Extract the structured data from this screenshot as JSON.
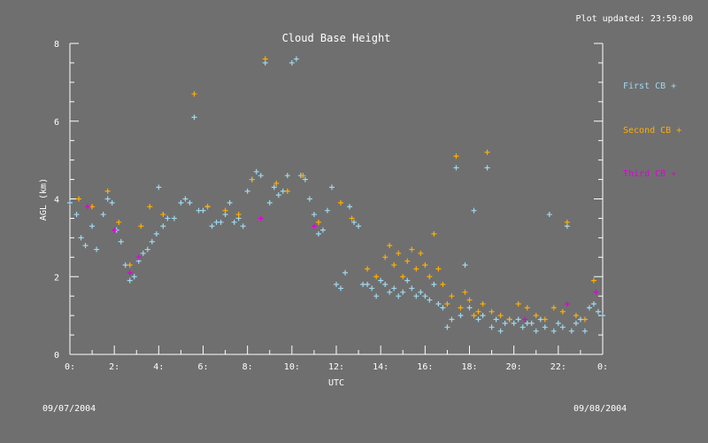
{
  "header": {
    "updated_text": "Plot updated: 23:59:00"
  },
  "dates": {
    "start": "09/07/2004",
    "end": "09/08/2004"
  },
  "colors": {
    "background": "#6f6f6f",
    "axes": "#ffffff",
    "first": "#9fd8ee",
    "second": "#ffae00",
    "third": "#e000e0"
  },
  "chart_data": {
    "type": "scatter",
    "title": "Cloud Base Height",
    "xlabel": "UTC",
    "ylabel": "AGL (km)",
    "xlim": [
      0,
      24
    ],
    "ylim": [
      0,
      8
    ],
    "x_ticks": [
      0,
      2,
      4,
      6,
      8,
      10,
      12,
      14,
      16,
      18,
      20,
      22,
      24
    ],
    "x_tick_labels": [
      "0:",
      "2:",
      "4:",
      "6:",
      "8:",
      "10:",
      "12:",
      "14:",
      "16:",
      "18:",
      "20:",
      "22:",
      "0:"
    ],
    "y_ticks": [
      0,
      2,
      4,
      6,
      8
    ],
    "y_tick_labels": [
      "0",
      "2",
      "4",
      "6",
      "8"
    ],
    "legend_position": "right",
    "series": [
      {
        "name": "First CB",
        "legend_label": "First CB +",
        "color": "#9fd8ee",
        "points": [
          [
            0.0,
            3.9
          ],
          [
            0.3,
            3.6
          ],
          [
            0.5,
            3.0
          ],
          [
            0.7,
            2.8
          ],
          [
            1.0,
            3.3
          ],
          [
            1.2,
            2.7
          ],
          [
            1.5,
            3.6
          ],
          [
            1.7,
            4.0
          ],
          [
            1.9,
            3.9
          ],
          [
            2.1,
            3.2
          ],
          [
            2.3,
            2.9
          ],
          [
            2.5,
            2.3
          ],
          [
            2.7,
            1.9
          ],
          [
            2.9,
            2.0
          ],
          [
            3.1,
            2.4
          ],
          [
            3.3,
            2.6
          ],
          [
            3.5,
            2.7
          ],
          [
            3.7,
            2.9
          ],
          [
            3.9,
            3.1
          ],
          [
            4.0,
            4.3
          ],
          [
            4.2,
            3.3
          ],
          [
            4.4,
            3.5
          ],
          [
            4.7,
            3.5
          ],
          [
            5.0,
            3.9
          ],
          [
            5.2,
            4.0
          ],
          [
            5.4,
            3.9
          ],
          [
            5.6,
            6.1
          ],
          [
            5.8,
            3.7
          ],
          [
            6.0,
            3.7
          ],
          [
            6.2,
            3.8
          ],
          [
            6.4,
            3.3
          ],
          [
            6.6,
            3.4
          ],
          [
            6.8,
            3.4
          ],
          [
            7.0,
            3.6
          ],
          [
            7.2,
            3.9
          ],
          [
            7.4,
            3.4
          ],
          [
            7.6,
            3.5
          ],
          [
            7.8,
            3.3
          ],
          [
            8.0,
            4.2
          ],
          [
            8.2,
            4.5
          ],
          [
            8.4,
            4.7
          ],
          [
            8.6,
            4.6
          ],
          [
            8.8,
            7.5
          ],
          [
            9.0,
            3.9
          ],
          [
            9.2,
            4.3
          ],
          [
            9.4,
            4.1
          ],
          [
            9.6,
            4.2
          ],
          [
            9.8,
            4.6
          ],
          [
            10.0,
            7.5
          ],
          [
            10.2,
            7.6
          ],
          [
            10.4,
            4.6
          ],
          [
            10.6,
            4.5
          ],
          [
            10.8,
            4.0
          ],
          [
            11.0,
            3.6
          ],
          [
            11.2,
            3.1
          ],
          [
            11.4,
            3.2
          ],
          [
            11.6,
            3.7
          ],
          [
            11.8,
            4.3
          ],
          [
            12.0,
            1.8
          ],
          [
            12.2,
            1.7
          ],
          [
            12.4,
            2.1
          ],
          [
            12.6,
            3.8
          ],
          [
            12.8,
            3.4
          ],
          [
            13.0,
            3.3
          ],
          [
            13.2,
            1.8
          ],
          [
            13.4,
            1.8
          ],
          [
            13.6,
            1.7
          ],
          [
            13.8,
            1.5
          ],
          [
            14.0,
            1.9
          ],
          [
            14.2,
            1.8
          ],
          [
            14.4,
            1.6
          ],
          [
            14.6,
            1.7
          ],
          [
            14.8,
            1.5
          ],
          [
            15.0,
            1.6
          ],
          [
            15.2,
            1.9
          ],
          [
            15.4,
            1.7
          ],
          [
            15.6,
            1.5
          ],
          [
            15.8,
            1.6
          ],
          [
            16.0,
            1.5
          ],
          [
            16.2,
            1.4
          ],
          [
            16.4,
            1.8
          ],
          [
            16.6,
            1.3
          ],
          [
            16.8,
            1.2
          ],
          [
            17.0,
            0.7
          ],
          [
            17.2,
            0.9
          ],
          [
            17.4,
            4.8
          ],
          [
            17.6,
            1.0
          ],
          [
            17.8,
            2.3
          ],
          [
            18.0,
            1.2
          ],
          [
            18.2,
            3.7
          ],
          [
            18.4,
            0.9
          ],
          [
            18.6,
            1.0
          ],
          [
            18.8,
            4.8
          ],
          [
            19.0,
            0.7
          ],
          [
            19.2,
            0.9
          ],
          [
            19.4,
            0.6
          ],
          [
            19.6,
            0.8
          ],
          [
            19.8,
            0.9
          ],
          [
            20.0,
            0.8
          ],
          [
            20.2,
            0.9
          ],
          [
            20.4,
            0.7
          ],
          [
            20.6,
            0.8
          ],
          [
            20.8,
            0.8
          ],
          [
            21.0,
            0.6
          ],
          [
            21.2,
            0.9
          ],
          [
            21.4,
            0.7
          ],
          [
            21.6,
            3.6
          ],
          [
            21.8,
            0.6
          ],
          [
            22.0,
            0.8
          ],
          [
            22.2,
            0.7
          ],
          [
            22.4,
            3.3
          ],
          [
            22.6,
            0.6
          ],
          [
            22.8,
            0.8
          ],
          [
            23.0,
            0.9
          ],
          [
            23.2,
            0.6
          ],
          [
            23.4,
            1.2
          ],
          [
            23.6,
            1.3
          ],
          [
            23.8,
            1.1
          ],
          [
            24.0,
            1.0
          ]
        ]
      },
      {
        "name": "Second CB",
        "legend_label": "Second CB +",
        "color": "#ffae00",
        "points": [
          [
            0.4,
            4.0
          ],
          [
            1.0,
            3.8
          ],
          [
            1.7,
            4.2
          ],
          [
            2.2,
            3.4
          ],
          [
            2.7,
            2.3
          ],
          [
            3.2,
            3.3
          ],
          [
            3.6,
            3.8
          ],
          [
            4.2,
            3.6
          ],
          [
            5.6,
            6.7
          ],
          [
            6.2,
            3.8
          ],
          [
            7.0,
            3.7
          ],
          [
            7.6,
            3.6
          ],
          [
            8.2,
            4.5
          ],
          [
            8.8,
            7.6
          ],
          [
            9.3,
            4.4
          ],
          [
            9.8,
            4.2
          ],
          [
            10.5,
            4.6
          ],
          [
            11.2,
            3.4
          ],
          [
            12.2,
            3.9
          ],
          [
            12.7,
            3.5
          ],
          [
            13.4,
            2.2
          ],
          [
            13.8,
            2.0
          ],
          [
            14.2,
            2.5
          ],
          [
            14.4,
            2.8
          ],
          [
            14.6,
            2.3
          ],
          [
            14.8,
            2.6
          ],
          [
            15.0,
            2.0
          ],
          [
            15.2,
            2.4
          ],
          [
            15.4,
            2.7
          ],
          [
            15.6,
            2.2
          ],
          [
            15.8,
            2.6
          ],
          [
            16.0,
            2.3
          ],
          [
            16.2,
            2.0
          ],
          [
            16.4,
            3.1
          ],
          [
            16.6,
            2.2
          ],
          [
            16.8,
            1.8
          ],
          [
            17.0,
            1.3
          ],
          [
            17.2,
            1.5
          ],
          [
            17.4,
            5.1
          ],
          [
            17.6,
            1.2
          ],
          [
            17.8,
            1.6
          ],
          [
            18.0,
            1.4
          ],
          [
            18.2,
            1.0
          ],
          [
            18.4,
            1.1
          ],
          [
            18.6,
            1.3
          ],
          [
            18.8,
            5.2
          ],
          [
            19.0,
            1.1
          ],
          [
            19.4,
            1.0
          ],
          [
            19.8,
            0.9
          ],
          [
            20.2,
            1.3
          ],
          [
            20.6,
            1.2
          ],
          [
            21.0,
            1.0
          ],
          [
            21.4,
            0.9
          ],
          [
            21.8,
            1.2
          ],
          [
            22.2,
            1.1
          ],
          [
            22.4,
            3.4
          ],
          [
            22.8,
            1.0
          ],
          [
            23.2,
            0.9
          ],
          [
            23.6,
            1.9
          ]
        ]
      },
      {
        "name": "Third CB",
        "legend_label": "Third CB +",
        "color": "#e000e0",
        "points": [
          [
            0.8,
            3.8
          ],
          [
            2.0,
            3.2
          ],
          [
            2.7,
            2.1
          ],
          [
            3.1,
            2.5
          ],
          [
            8.6,
            3.5
          ],
          [
            11.0,
            3.3
          ],
          [
            20.5,
            0.9
          ],
          [
            22.4,
            1.3
          ],
          [
            23.7,
            1.6
          ]
        ]
      }
    ]
  }
}
